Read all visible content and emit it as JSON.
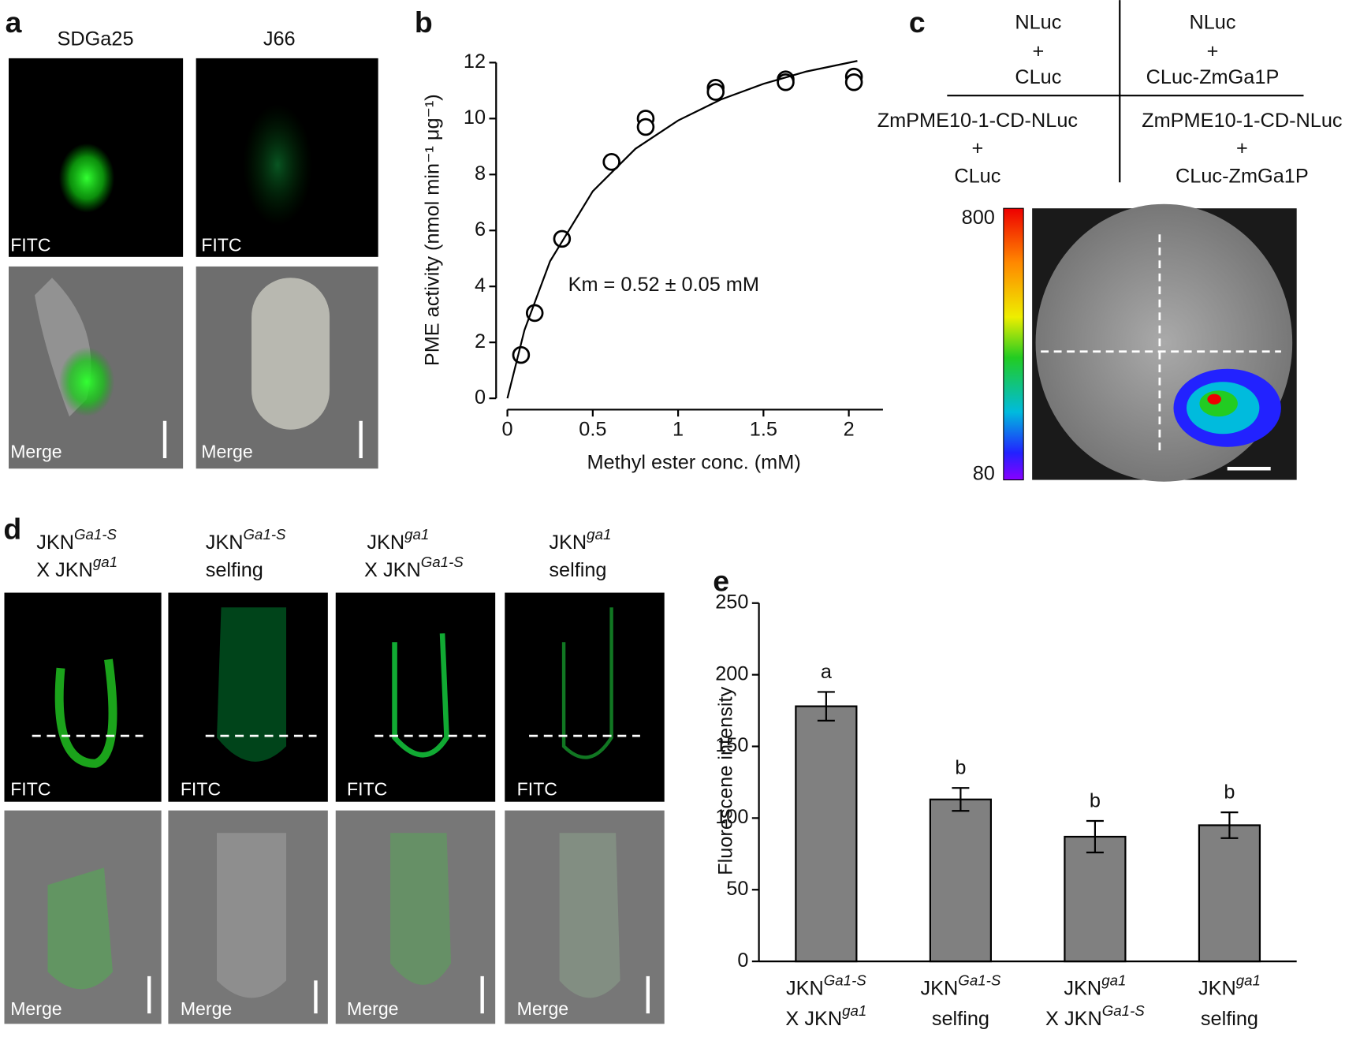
{
  "panel_labels": [
    "a",
    "b",
    "c",
    "d",
    "e"
  ],
  "panel_a": {
    "columns": [
      "SDGa25",
      "J66"
    ],
    "image_labels": [
      "FITC",
      "Merge"
    ]
  },
  "panel_c": {
    "top_left": [
      "NLuc",
      "+",
      "CLuc"
    ],
    "top_right": [
      "NLuc",
      "+",
      "CLuc-ZmGa1P"
    ],
    "bottom_left": [
      "ZmPME10-1-CD-NLuc",
      "+",
      "CLuc"
    ],
    "bottom_right": [
      "ZmPME10-1-CD-NLuc",
      "+",
      "CLuc-ZmGa1P"
    ],
    "colorbar_max": 800,
    "colorbar_min": 80
  },
  "panel_d": {
    "columns": [
      {
        "line1": [
          "JKN",
          "Ga1-S"
        ],
        "line2": [
          "X JKN",
          "ga1"
        ]
      },
      {
        "line1": [
          "JKN",
          "Ga1-S"
        ],
        "line2": [
          "selfing"
        ]
      },
      {
        "line1": [
          "JKN",
          "ga1"
        ],
        "line2": [
          "X JKN",
          "Ga1-S"
        ]
      },
      {
        "line1": [
          "JKN",
          "ga1"
        ],
        "line2": [
          "selfing"
        ]
      }
    ],
    "image_labels": [
      "FITC",
      "Merge"
    ]
  },
  "chart_data": [
    {
      "type": "scatter",
      "xlabel": "Methyl ester conc. (mM)",
      "ylabel": "PME activity (nmol min⁻¹ μg⁻¹)",
      "annotation": "Km = 0.52 ± 0.05 mM",
      "xlim": [
        0,
        2.2
      ],
      "ylim": [
        0,
        12
      ],
      "xticks": [
        0,
        0.5,
        1,
        1.5,
        2
      ],
      "yticks": [
        0,
        2,
        4,
        6,
        8,
        10,
        12
      ],
      "series": [
        {
          "type": "scatter",
          "color": "#000000",
          "x": [
            0.08,
            0.16,
            0.32,
            0.61,
            0.81,
            0.81,
            1.22,
            1.22,
            1.63,
            1.63,
            2.03,
            2.03
          ],
          "values": [
            1.55,
            3.05,
            5.7,
            8.45,
            10.0,
            9.7,
            11.1,
            10.95,
            11.4,
            11.3,
            11.5,
            11.3
          ]
        },
        {
          "type": "line",
          "color": "#000000",
          "x": [
            0,
            0.1,
            0.25,
            0.5,
            0.75,
            1,
            1.25,
            1.5,
            1.75,
            2.05
          ],
          "values": [
            0,
            2.44,
            4.9,
            7.4,
            8.92,
            9.93,
            10.68,
            11.24,
            11.68,
            12.06
          ]
        }
      ]
    },
    {
      "type": "bar",
      "ylabel": "Fluorescene intensity",
      "color": "#808080",
      "categories": [
        {
          "line1": [
            "JKN",
            "Ga1-S"
          ],
          "line2": [
            "X JKN",
            "ga1"
          ]
        },
        {
          "line1": [
            "JKN",
            "Ga1-S"
          ],
          "line2": [
            "selfing"
          ]
        },
        {
          "line1": [
            "JKN",
            "ga1"
          ],
          "line2": [
            "X JKN",
            "Ga1-S"
          ]
        },
        {
          "line1": [
            "JKN",
            "ga1"
          ],
          "line2": [
            "selfing"
          ]
        }
      ],
      "values": [
        178,
        113,
        87,
        95
      ],
      "errors": [
        10,
        8,
        11,
        9
      ],
      "letters": [
        "a",
        "b",
        "b",
        "b"
      ],
      "ylim": [
        0,
        250
      ],
      "yticks": [
        0,
        50,
        100,
        150,
        200,
        250
      ]
    }
  ]
}
